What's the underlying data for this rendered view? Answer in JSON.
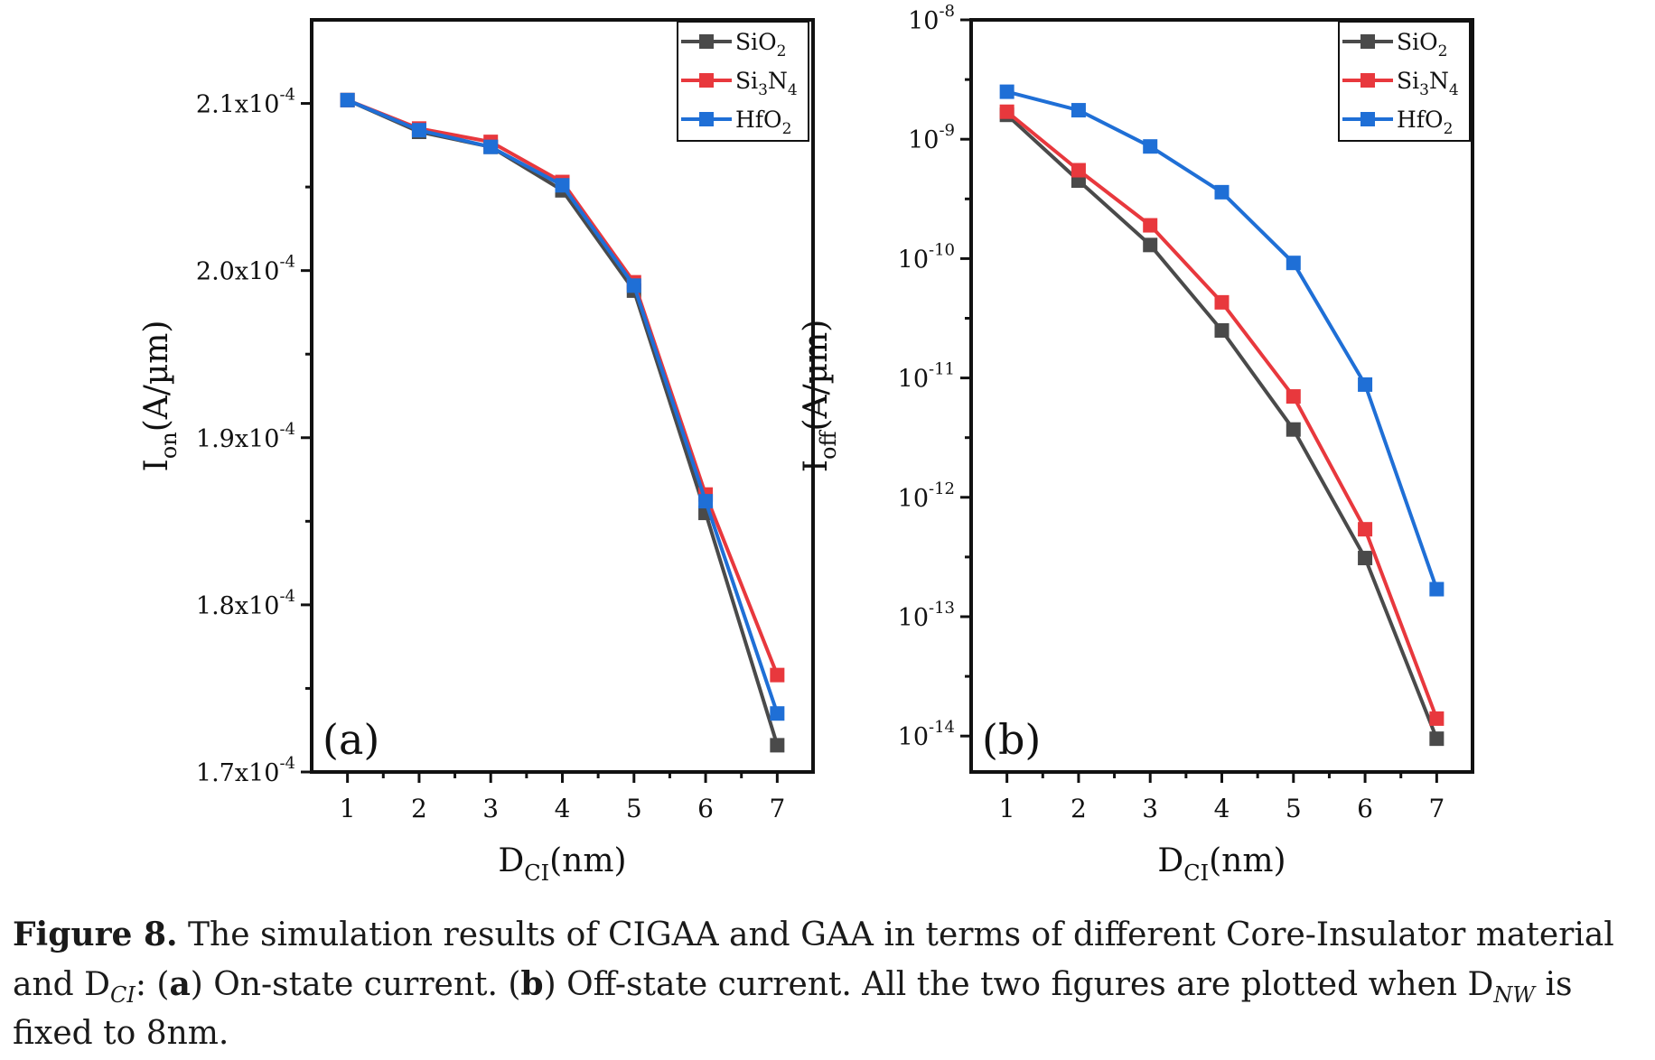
{
  "chart_data": [
    {
      "id": "a",
      "type": "line",
      "panel_label": "(a)",
      "x": [
        1,
        2,
        3,
        4,
        5,
        6,
        7
      ],
      "xlim": [
        0.5,
        7.5
      ],
      "ylim": [
        0.00017,
        0.000215
      ],
      "yscale": "linear",
      "xlabel": {
        "main": "D",
        "sub": "CI",
        "tail": "(nm)"
      },
      "ylabel": {
        "main": "I",
        "sub": "on",
        "tail": "(A/µm)"
      },
      "yticks": [
        {
          "value": 0.00017,
          "mant": "1.7x10",
          "exp": "-4"
        },
        {
          "value": 0.00018,
          "mant": "1.8x10",
          "exp": "-4"
        },
        {
          "value": 0.00019,
          "mant": "1.9x10",
          "exp": "-4"
        },
        {
          "value": 0.0002,
          "mant": "2.0x10",
          "exp": "-4"
        },
        {
          "value": 0.00021,
          "mant": "2.1x10",
          "exp": "-4"
        }
      ],
      "series": [
        {
          "name": "SiO2",
          "label_main": "SiO",
          "label_sub": "2",
          "color": "#4a4a4a",
          "values": [
            0.0002102,
            0.0002083,
            0.0002074,
            0.0002048,
            0.0001988,
            0.0001855,
            0.0001716
          ]
        },
        {
          "name": "Si3N4",
          "label_main": "Si",
          "label_sub": "3",
          "label_main2": "N",
          "label_sub2": "4",
          "color": "#e8383d",
          "values": [
            0.0002102,
            0.0002085,
            0.0002077,
            0.0002053,
            0.0001993,
            0.0001866,
            0.0001758
          ]
        },
        {
          "name": "HfO2",
          "label_main": "HfO",
          "label_sub": "2",
          "color": "#1f6fd6",
          "values": [
            0.0002102,
            0.0002084,
            0.0002074,
            0.0002051,
            0.0001991,
            0.0001862,
            0.0001735
          ]
        }
      ]
    },
    {
      "id": "b",
      "type": "line",
      "panel_label": "(b)",
      "x": [
        1,
        2,
        3,
        4,
        5,
        6,
        7
      ],
      "xlim": [
        0.5,
        7.5
      ],
      "ylim": [
        5e-15,
        1e-08
      ],
      "yscale": "log",
      "xlabel": {
        "main": "D",
        "sub": "CI",
        "tail": "(nm)"
      },
      "ylabel": {
        "main": "I",
        "sub": "off",
        "tail": "(A/µm)"
      },
      "yticks": [
        {
          "value": 1e-14,
          "mant": "10",
          "exp": "-14"
        },
        {
          "value": 1e-13,
          "mant": "10",
          "exp": "-13"
        },
        {
          "value": 1e-12,
          "mant": "10",
          "exp": "-12"
        },
        {
          "value": 1e-11,
          "mant": "10",
          "exp": "-11"
        },
        {
          "value": 1e-10,
          "mant": "10",
          "exp": "-10"
        },
        {
          "value": 1e-09,
          "mant": "10",
          "exp": "-9"
        },
        {
          "value": 1e-08,
          "mant": "10",
          "exp": "-8"
        }
      ],
      "series": [
        {
          "name": "SiO2",
          "label_main": "SiO",
          "label_sub": "2",
          "color": "#4a4a4a",
          "values": [
            1.6e-09,
            4.5e-10,
            1.3e-10,
            2.5e-11,
            3.7e-12,
            3.1e-13,
            9.5e-15
          ]
        },
        {
          "name": "Si3N4",
          "label_main": "Si",
          "label_sub": "3",
          "label_main2": "N",
          "label_sub2": "4",
          "color": "#e8383d",
          "values": [
            1.7e-09,
            5.5e-10,
            1.9e-10,
            4.3e-11,
            7e-12,
            5.4e-13,
            1.4e-14
          ]
        },
        {
          "name": "HfO2",
          "label_main": "HfO",
          "label_sub": "2",
          "color": "#1f6fd6",
          "values": [
            2.5e-09,
            1.75e-09,
            8.7e-10,
            3.6e-10,
            9.2e-11,
            8.8e-12,
            1.7e-13
          ]
        }
      ]
    }
  ],
  "caption": {
    "figure": "Figure 8.",
    "text1": " The simulation results of CIGAA and GAA in terms of different Core-Insulator material and D",
    "sub1": "CI",
    "text2": ": (",
    "bold_a": "a",
    "text3": ") On-state current. (",
    "bold_b": "b",
    "text4": ") Off-state current. All the two figures are plotted when D",
    "sub2": "NW",
    "text5": " is fixed to 8nm."
  }
}
